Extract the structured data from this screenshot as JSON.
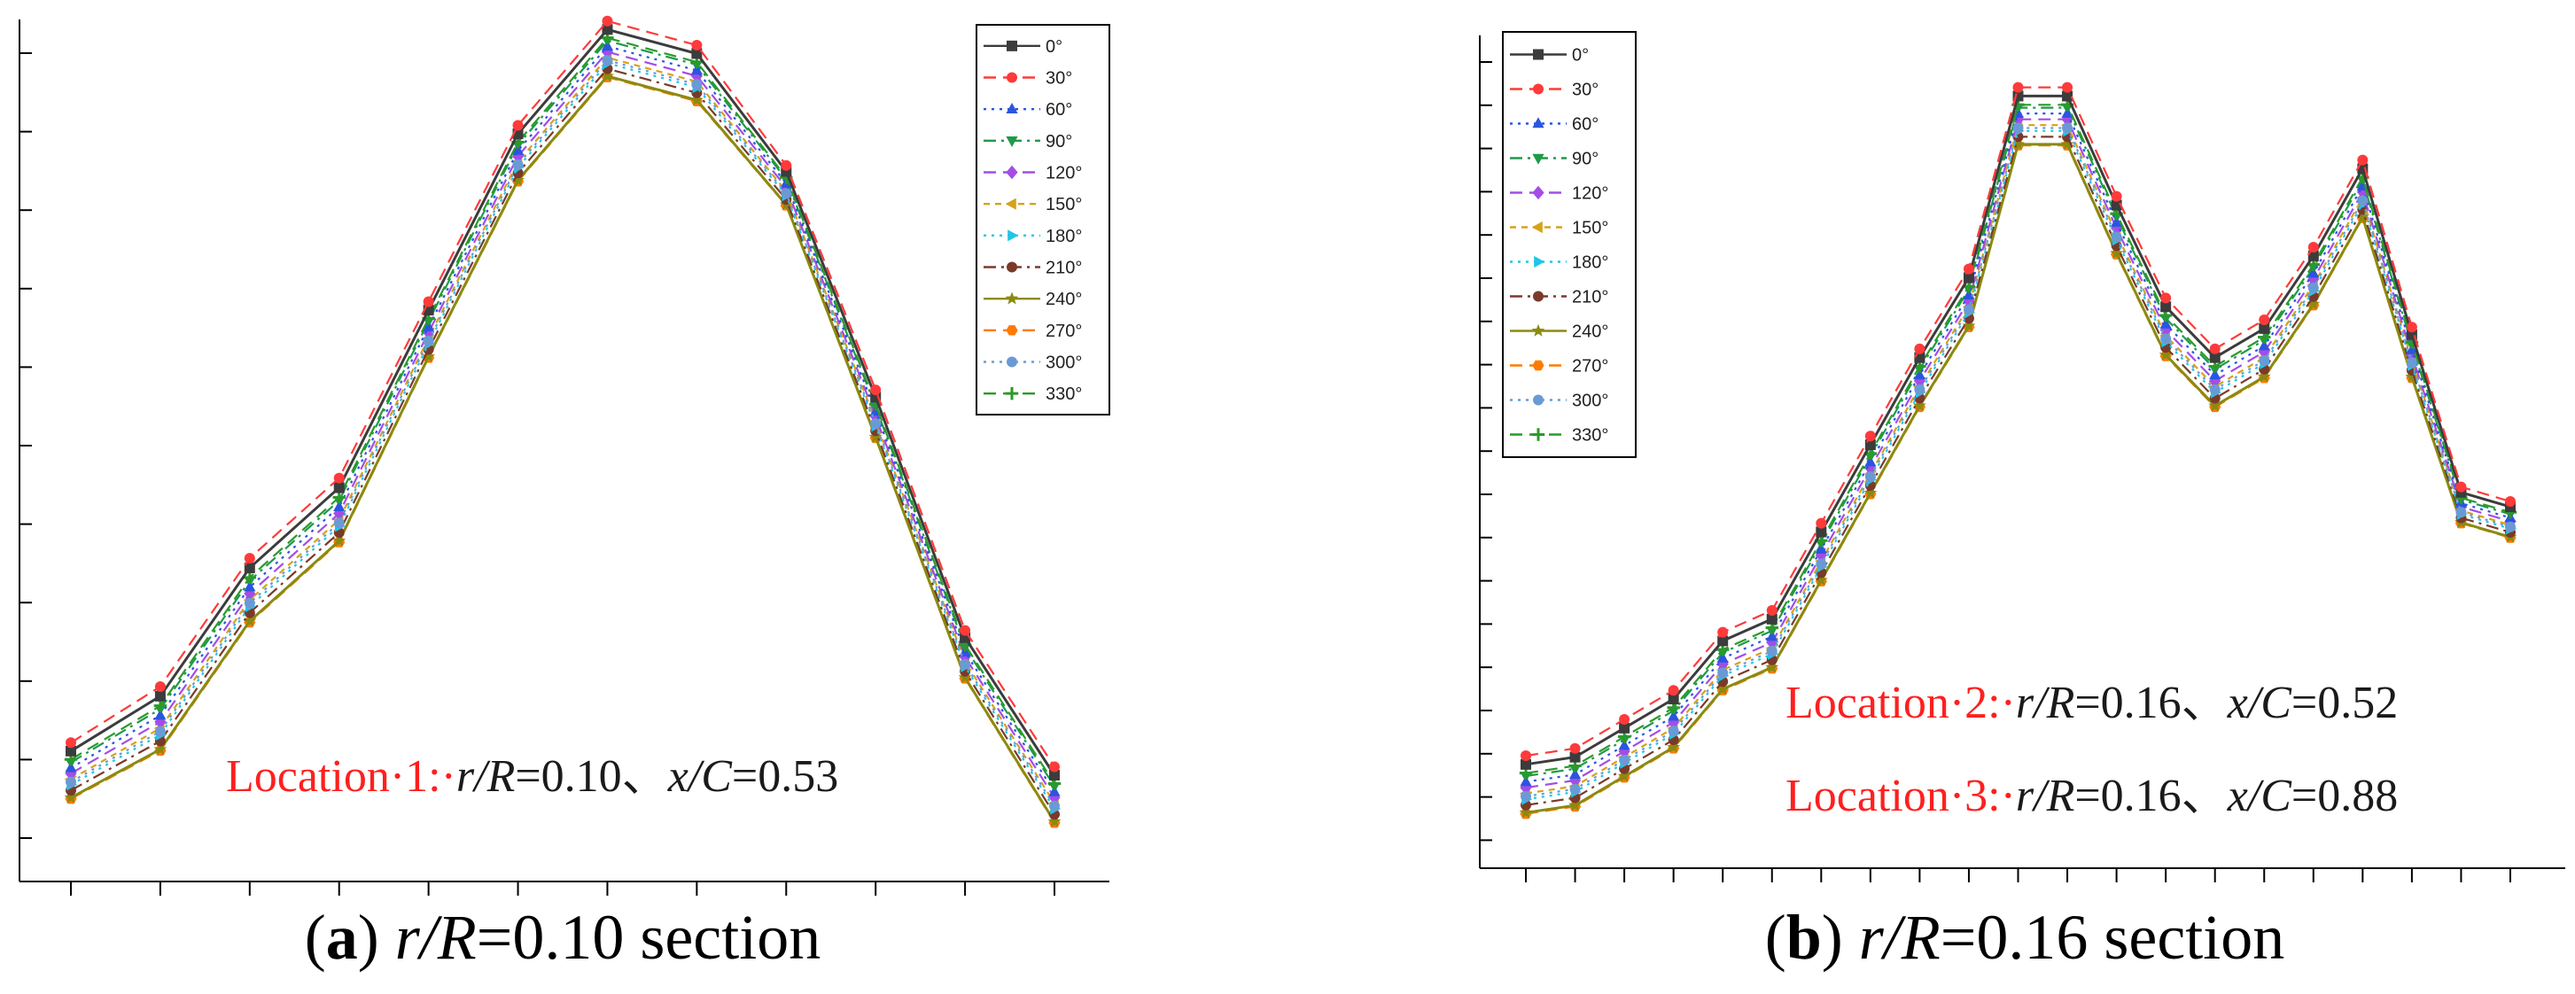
{
  "series_styles": [
    {
      "name": "0°",
      "color": "#3c3c3c",
      "marker": "square",
      "dash": "solid"
    },
    {
      "name": "30°",
      "color": "#ff3a3a",
      "marker": "circle",
      "dash": "dash"
    },
    {
      "name": "60°",
      "color": "#2b55e0",
      "marker": "triangle-up",
      "dash": "dot"
    },
    {
      "name": "90°",
      "color": "#1f9a4a",
      "marker": "triangle-down",
      "dash": "dashdot"
    },
    {
      "name": "120°",
      "color": "#a34de6",
      "marker": "diamond",
      "dash": "dash"
    },
    {
      "name": "150°",
      "color": "#d6a21a",
      "marker": "triangle-left",
      "dash": "shortdash"
    },
    {
      "name": "180°",
      "color": "#1fc6e6",
      "marker": "triangle-right",
      "dash": "dot"
    },
    {
      "name": "210°",
      "color": "#7a3a2a",
      "marker": "circle",
      "dash": "dashdot"
    },
    {
      "name": "240°",
      "color": "#8a8a10",
      "marker": "star",
      "dash": "solid"
    },
    {
      "name": "270°",
      "color": "#ff7a00",
      "marker": "hexagon",
      "dash": "dash"
    },
    {
      "name": "300°",
      "color": "#6a9ad6",
      "marker": "circle",
      "dash": "dot"
    },
    {
      "name": "330°",
      "color": "#2a9a2a",
      "marker": "plus",
      "dash": "dash"
    }
  ],
  "chart_data": [
    {
      "type": "line",
      "caption_letter": "a",
      "caption_var": "r/R",
      "caption_rest": "=0.10 section",
      "location_labels": [
        {
          "prefix": "Location·1:·",
          "var1": "r/R",
          "val1": "=0.10、",
          "var2": "x/C",
          "val2": "=0.53"
        }
      ],
      "x": [
        0,
        1,
        2,
        3,
        4,
        5,
        6,
        7,
        8,
        9,
        10,
        11
      ],
      "ylim": [
        0,
        1
      ],
      "base": [
        0.07,
        0.13,
        0.29,
        0.39,
        0.62,
        0.84,
        0.97,
        0.94,
        0.81,
        0.52,
        0.22,
        0.04
      ],
      "spread": [
        0.07,
        0.08,
        0.08,
        0.08,
        0.07,
        0.07,
        0.07,
        0.07,
        0.05,
        0.06,
        0.06,
        0.07
      ]
    },
    {
      "type": "line",
      "caption_letter": "b",
      "caption_var": "r/R",
      "caption_rest": "=0.16 section",
      "location_labels": [
        {
          "prefix": "Location·2:·",
          "var1": "r/R",
          "val1": "=0.16、",
          "var2": "x/C",
          "val2": "=0.52"
        },
        {
          "prefix": "Location·3:·",
          "var1": "r/R",
          "val1": "=0.16、",
          "var2": "x/C",
          "val2": "=0.88"
        }
      ],
      "x": [
        0,
        1,
        2,
        3,
        4,
        5,
        6,
        7,
        8,
        9,
        10,
        11,
        12,
        13,
        14,
        15,
        16,
        17,
        18,
        19,
        20
      ],
      "ylim": [
        0,
        1
      ],
      "base": [
        0.02,
        0.03,
        0.07,
        0.11,
        0.19,
        0.22,
        0.34,
        0.46,
        0.58,
        0.69,
        0.94,
        0.94,
        0.79,
        0.65,
        0.58,
        0.62,
        0.72,
        0.84,
        0.62,
        0.42,
        0.4
      ],
      "spread": [
        0.08,
        0.08,
        0.08,
        0.08,
        0.08,
        0.08,
        0.08,
        0.08,
        0.08,
        0.08,
        0.08,
        0.08,
        0.08,
        0.08,
        0.08,
        0.08,
        0.08,
        0.08,
        0.07,
        0.05,
        0.05
      ]
    }
  ]
}
